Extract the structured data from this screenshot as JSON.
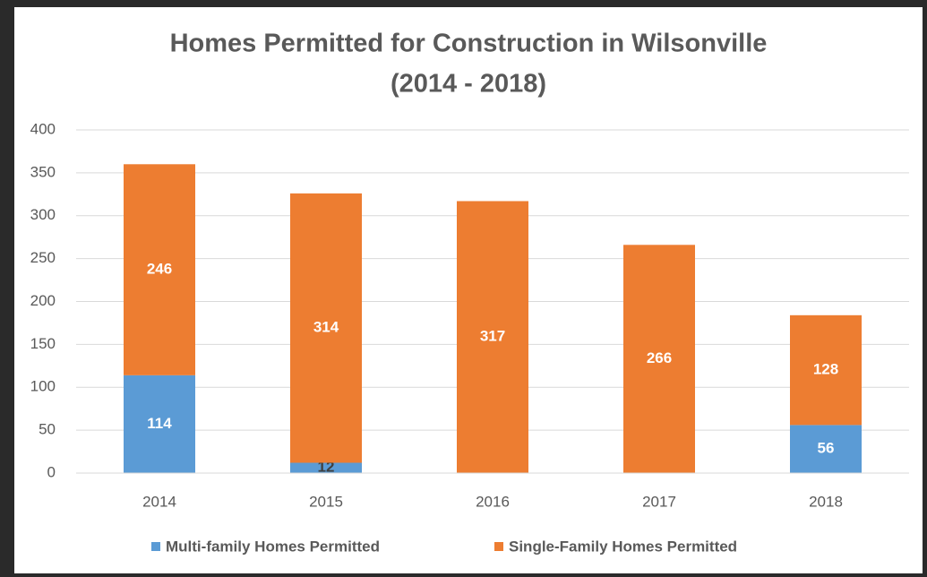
{
  "chart_data": {
    "type": "stacked-bar",
    "title": "Homes Permitted for Construction in Wilsonville",
    "subtitle": "(2014 - 2018)",
    "categories": [
      "2014",
      "2015",
      "2016",
      "2017",
      "2018"
    ],
    "series": [
      {
        "name": "Multi-family Homes Permitted",
        "color": "#5b9bd5",
        "values": [
          114,
          12,
          0,
          0,
          56
        ]
      },
      {
        "name": "Single-Family Homes Permitted",
        "color": "#ed7d31",
        "values": [
          246,
          314,
          317,
          266,
          128
        ]
      }
    ],
    "ylim": [
      0,
      400
    ],
    "yticks": [
      0,
      50,
      100,
      150,
      200,
      250,
      300,
      350,
      400
    ],
    "grid": true,
    "legend": "bottom"
  }
}
